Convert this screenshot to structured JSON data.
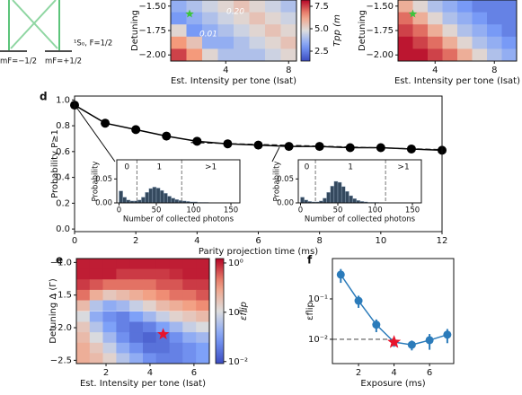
{
  "labels": {
    "mf_minus": "mF=−1/2",
    "mf_plus": "mF=+1/2",
    "state": "¹S₀, F=1/2"
  },
  "chart_data": [
    {
      "type": "heatmap",
      "x": [
        1,
        2,
        3,
        4,
        5,
        6,
        7,
        8
      ],
      "y": [
        -1.5,
        -1.625,
        -1.75,
        -1.875,
        -2.0
      ],
      "z": [
        [
          3.5,
          4.0,
          4.5,
          5.0,
          5.5,
          5.0,
          4.5,
          4.0
        ],
        [
          3.0,
          3.5,
          4.0,
          4.5,
          5.0,
          5.5,
          5.0,
          4.5
        ],
        [
          5.0,
          3.0,
          3.5,
          4.0,
          4.5,
          5.0,
          5.5,
          5.0
        ],
        [
          6.5,
          5.5,
          3.5,
          3.5,
          4.0,
          4.5,
          5.0,
          5.5
        ],
        [
          7.5,
          6.5,
          5.0,
          4.0,
          4.0,
          4.0,
          4.5,
          5.0
        ]
      ],
      "xlim": [
        0.5,
        8.5
      ],
      "ylim": [
        -2.0625,
        -1.4375
      ],
      "xticks": [
        4,
        8
      ],
      "yticks": [
        {
          "value": -1.5,
          "label": "−1.50"
        },
        {
          "value": -1.75,
          "label": "−1.75"
        },
        {
          "value": -2.0,
          "label": "−2.00"
        }
      ],
      "xlabel": "Est. Intensity per tone (Isat)",
      "ylabel": "Detuning",
      "zlim": [
        1.4,
        8.2
      ],
      "colormap": "coolwarm",
      "colorbar": {
        "label": "Tpp (m",
        "ticks": [
          2.5,
          {
            "value": 5.0,
            "label": "5.0"
          },
          7.5
        ]
      },
      "annotations": [
        "0.20",
        "0.01"
      ],
      "marker": {
        "x": 1.7,
        "y": -1.58,
        "color": "#3cc43c"
      }
    },
    {
      "type": "heatmap",
      "x": [
        2,
        3,
        4,
        5,
        6,
        7,
        8,
        9
      ],
      "y": [
        -1.5,
        -1.625,
        -1.75,
        -1.875,
        -2.0
      ],
      "z": [
        [
          6.0,
          5.0,
          4.0,
          3.5,
          3.0,
          2.5,
          2.5,
          2.5
        ],
        [
          7.0,
          6.0,
          5.0,
          4.0,
          3.5,
          3.0,
          2.5,
          2.5
        ],
        [
          7.5,
          7.0,
          6.0,
          5.0,
          4.0,
          3.5,
          3.0,
          2.5
        ],
        [
          8.0,
          7.5,
          7.0,
          6.0,
          5.0,
          4.0,
          3.5,
          3.0
        ],
        [
          8.0,
          8.0,
          7.5,
          7.0,
          6.0,
          5.0,
          4.0,
          3.5
        ]
      ],
      "xlim": [
        1.5,
        9.5
      ],
      "ylim": [
        -2.0625,
        -1.4375
      ],
      "xticks": [
        4,
        8
      ],
      "yticks": [
        {
          "value": -1.5,
          "label": "−1.50"
        },
        {
          "value": -1.75,
          "label": "−1.75"
        },
        {
          "value": -2.0,
          "label": "−2.00"
        }
      ],
      "xlabel": "Est. Intensity per tone (Isat)",
      "ylabel": "Detuning",
      "zlim": [
        1.4,
        8.2
      ],
      "colormap": "coolwarm",
      "marker": {
        "x": 2.5,
        "y": -1.58,
        "color": "#3cc43c"
      }
    },
    {
      "type": "line",
      "panel": "d",
      "x": [
        0,
        1,
        2,
        3,
        4,
        5,
        6,
        7,
        8,
        9,
        10,
        11,
        12
      ],
      "values": [
        0.96,
        0.82,
        0.77,
        0.72,
        0.68,
        0.66,
        0.65,
        0.64,
        0.64,
        0.63,
        0.63,
        0.62,
        0.61
      ],
      "color": "#000000",
      "xlim": [
        0,
        12
      ],
      "ylim": [
        -0.02,
        1.03
      ],
      "xticks": [
        0,
        2,
        4,
        6,
        8,
        10,
        12
      ],
      "yticks": [
        {
          "value": 0,
          "label": "0.0"
        },
        0.2,
        0.4,
        0.6,
        0.8,
        {
          "value": 1,
          "label": "1.0"
        }
      ],
      "xlabel": "Parity projection time (ms)",
      "ylabel": "Probability P≥1",
      "fit": {
        "x": [
          3.8,
          12
        ],
        "values": [
          0.67,
          0.615
        ]
      }
    },
    {
      "type": "histogram",
      "bins": [
        0,
        5,
        10,
        15,
        20,
        25,
        30,
        35,
        40,
        45,
        50,
        55,
        60,
        65,
        70,
        75,
        80,
        85,
        90,
        95,
        100,
        105,
        110,
        115,
        120
      ],
      "counts": [
        0.025,
        0.012,
        0.006,
        0.004,
        0.004,
        0.006,
        0.012,
        0.022,
        0.03,
        0.033,
        0.031,
        0.026,
        0.02,
        0.014,
        0.01,
        0.007,
        0.005,
        0.004,
        0.003,
        0.002,
        0.002,
        0.001,
        0.001,
        0.001
      ],
      "color": "#34495e",
      "xlim": [
        -3,
        162
      ],
      "ylim": [
        0,
        0.09
      ],
      "xticks": [
        0,
        50,
        100,
        150
      ],
      "yticks": [
        {
          "value": 0,
          "label": "0.00"
        },
        {
          "value": 0.05,
          "label": "0.05"
        }
      ],
      "xlabel": "Number of collected photons",
      "ylabel": "Probability",
      "thresholds": [
        24,
        84
      ],
      "region_labels": [
        "0",
        "1",
        ">1"
      ]
    },
    {
      "type": "histogram",
      "bins": [
        0,
        5,
        10,
        15,
        20,
        25,
        30,
        35,
        40,
        45,
        50,
        55,
        60,
        65,
        70,
        75,
        80,
        85,
        90,
        95,
        100,
        105,
        110,
        115,
        120
      ],
      "counts": [
        0.012,
        0.006,
        0.003,
        0.002,
        0.002,
        0.004,
        0.01,
        0.022,
        0.035,
        0.045,
        0.043,
        0.034,
        0.024,
        0.015,
        0.009,
        0.005,
        0.003,
        0.002,
        0.001,
        0.001,
        0.001,
        0,
        0,
        0
      ],
      "color": "#34495e",
      "xlim": [
        -3,
        162
      ],
      "ylim": [
        0,
        0.09
      ],
      "xticks": [
        0,
        50,
        100,
        150
      ],
      "yticks": [
        {
          "value": 0,
          "label": "0.00"
        },
        {
          "value": 0.05,
          "label": "0.05"
        }
      ],
      "xlabel": "Number of collected photons",
      "ylabel": "Probability",
      "thresholds": [
        20,
        114
      ],
      "region_labels": [
        "0",
        "1",
        ">1"
      ]
    },
    {
      "type": "heatmap",
      "panel": "e",
      "x": [
        0.95,
        1.56,
        2.16,
        2.77,
        3.37,
        3.98,
        4.58,
        5.19,
        5.79,
        6.4
      ],
      "y": [
        -1.02,
        -1.18,
        -1.34,
        -1.5,
        -1.66,
        -1.83,
        -1.99,
        -2.15,
        -2.31,
        -2.47
      ],
      "z": [
        [
          1,
          1,
          1,
          1,
          1,
          1,
          1,
          1,
          1,
          1
        ],
        [
          1,
          1,
          1,
          0.79,
          0.79,
          0.79,
          0.79,
          0.89,
          1,
          1
        ],
        [
          0.79,
          0.63,
          0.5,
          0.5,
          0.5,
          0.5,
          0.63,
          0.63,
          0.79,
          0.79
        ],
        [
          0.5,
          0.25,
          0.16,
          0.2,
          0.25,
          0.32,
          0.4,
          0.5,
          0.5,
          0.63
        ],
        [
          0.2,
          0.063,
          0.04,
          0.05,
          0.079,
          0.13,
          0.2,
          0.25,
          0.32,
          0.4
        ],
        [
          0.1,
          0.04,
          0.025,
          0.02,
          0.032,
          0.05,
          0.079,
          0.13,
          0.16,
          0.2
        ],
        [
          0.16,
          0.063,
          0.032,
          0.02,
          0.016,
          0.02,
          0.032,
          0.05,
          0.079,
          0.1
        ],
        [
          0.2,
          0.1,
          0.05,
          0.025,
          0.016,
          0.013,
          0.016,
          0.025,
          0.04,
          0.05
        ],
        [
          0.25,
          0.16,
          0.079,
          0.04,
          0.025,
          0.016,
          0.016,
          0.02,
          0.025,
          0.032
        ],
        [
          0.25,
          0.2,
          0.13,
          0.063,
          0.04,
          0.025,
          0.02,
          0.02,
          0.025,
          0.032
        ]
      ],
      "xlim": [
        0.65,
        6.7
      ],
      "ylim": [
        -2.55,
        -0.94
      ],
      "xticks": [
        2,
        4,
        6
      ],
      "yticks": [
        {
          "value": -1,
          "label": "−1.0"
        },
        {
          "value": -1.5,
          "label": "−1.5"
        },
        {
          "value": -2,
          "label": "−2.0"
        },
        {
          "value": -2.5,
          "label": "−2.5"
        }
      ],
      "xlabel": "Est. Intensity per tone (Isat)",
      "ylabel": "Detuning Δ (Γ)",
      "zlim": [
        0.0091,
        1.23
      ],
      "zlog": true,
      "colormap": "coolwarm",
      "colorbar": {
        "label": "εflip",
        "ticks": [
          {
            "value": 1,
            "label": "10⁰"
          },
          {
            "value": 0.1,
            "label": "10⁻¹"
          },
          {
            "value": 0.01,
            "label": "10⁻²"
          }
        ]
      },
      "marker": {
        "x": 4.6,
        "y": -2.1,
        "color": "#e8132b"
      }
    },
    {
      "type": "errorbar",
      "panel": "f",
      "x": [
        1,
        2,
        3,
        4,
        5,
        6,
        7
      ],
      "values": [
        0.4,
        0.09,
        0.023,
        0.0085,
        0.0073,
        0.0095,
        0.013
      ],
      "errors": [
        0.15,
        0.03,
        0.008,
        0.002,
        0.002,
        0.004,
        0.005
      ],
      "color": "#2b7bba",
      "xlim": [
        0.53,
        7.36
      ],
      "ylim": [
        0.0025,
        1
      ],
      "ylog": true,
      "xticks": [
        2,
        4,
        6
      ],
      "yticks": [
        {
          "value": 0.01,
          "label": "10⁻²"
        },
        {
          "value": 0.1,
          "label": "10⁻¹"
        }
      ],
      "xlabel": "Exposure (ms)",
      "ylabel": "εflip",
      "reference_line": 0.01,
      "highlight_index": 3,
      "highlight_color": "#e8132b"
    }
  ]
}
